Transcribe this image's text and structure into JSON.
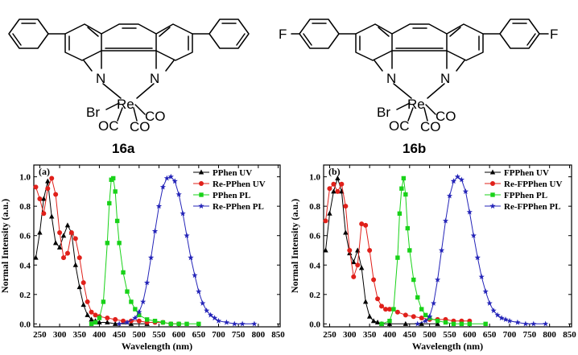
{
  "structures": {
    "left": {
      "label": "16a",
      "para_substituent": "",
      "atoms": {
        "n1": "N",
        "n2": "N",
        "metal": "Re",
        "halide": "Br",
        "oc": "OC",
        "co1": "CO",
        "co2": "CO"
      }
    },
    "right": {
      "label": "16b",
      "para_substituent": "F",
      "atoms": {
        "n1": "N",
        "n2": "N",
        "metal": "Re",
        "halide": "Br",
        "oc": "OC",
        "co1": "CO",
        "co2": "CO"
      }
    }
  },
  "chart_data": [
    {
      "type": "line",
      "panel_tag": "(a)",
      "xlabel": "Wavelength (nm)",
      "ylabel": "Normal Intensity (a.u.)",
      "xlim": [
        235,
        855
      ],
      "ylim": [
        -0.02,
        1.08
      ],
      "xticks": [
        250,
        300,
        350,
        400,
        450,
        500,
        550,
        600,
        650,
        700,
        750,
        800,
        850
      ],
      "yticks": [
        0.0,
        0.2,
        0.4,
        0.6,
        0.8,
        1.0
      ],
      "legend_position": "top-right",
      "series": [
        {
          "name": "PPhen UV",
          "color": "#000000",
          "marker": "triangle",
          "x": [
            240,
            250,
            260,
            270,
            280,
            290,
            300,
            310,
            320,
            330,
            340,
            350,
            360,
            370,
            380,
            390,
            400,
            420,
            440,
            480,
            520
          ],
          "y": [
            0.45,
            0.62,
            0.85,
            0.97,
            0.73,
            0.55,
            0.52,
            0.6,
            0.67,
            0.62,
            0.4,
            0.25,
            0.13,
            0.06,
            0.03,
            0.02,
            0.01,
            0.01,
            0.0,
            0.0,
            0.0
          ]
        },
        {
          "name": "Re-PPhen UV",
          "color": "#e0201a",
          "marker": "circle",
          "x": [
            240,
            250,
            260,
            270,
            280,
            290,
            300,
            310,
            320,
            330,
            340,
            350,
            360,
            370,
            380,
            390,
            400,
            420,
            440,
            460,
            480,
            500,
            520,
            540,
            560,
            580,
            600
          ],
          "y": [
            0.93,
            0.85,
            0.75,
            0.92,
            0.99,
            0.88,
            0.62,
            0.45,
            0.48,
            0.62,
            0.58,
            0.45,
            0.28,
            0.15,
            0.08,
            0.06,
            0.05,
            0.04,
            0.03,
            0.02,
            0.02,
            0.02,
            0.01,
            0.01,
            0.01,
            0.0,
            0.0
          ]
        },
        {
          "name": "PPhen PL",
          "color": "#19d219",
          "marker": "square",
          "x": [
            380,
            390,
            400,
            410,
            420,
            425,
            430,
            435,
            440,
            445,
            450,
            460,
            470,
            480,
            490,
            500,
            520,
            540,
            560,
            580,
            600,
            620,
            650
          ],
          "y": [
            0.0,
            0.01,
            0.04,
            0.15,
            0.55,
            0.82,
            0.98,
            0.99,
            0.9,
            0.7,
            0.55,
            0.35,
            0.22,
            0.15,
            0.1,
            0.06,
            0.03,
            0.02,
            0.01,
            0.0,
            0.0,
            0.0,
            0.0
          ]
        },
        {
          "name": "Re-PPhen PL",
          "color": "#2424b8",
          "marker": "star",
          "x": [
            450,
            470,
            490,
            500,
            510,
            520,
            530,
            540,
            550,
            560,
            570,
            580,
            590,
            600,
            610,
            620,
            630,
            640,
            650,
            660,
            670,
            680,
            690,
            700,
            720,
            740,
            760,
            790
          ],
          "y": [
            0.0,
            0.01,
            0.04,
            0.08,
            0.15,
            0.28,
            0.45,
            0.63,
            0.8,
            0.93,
            0.99,
            1.0,
            0.97,
            0.88,
            0.75,
            0.6,
            0.45,
            0.33,
            0.22,
            0.14,
            0.09,
            0.06,
            0.04,
            0.02,
            0.01,
            0.0,
            0.0,
            0.0
          ]
        }
      ]
    },
    {
      "type": "line",
      "panel_tag": "(b)",
      "xlabel": "Wavelength (nm)",
      "ylabel": "Normal Intensity (a.u.)",
      "xlim": [
        235,
        855
      ],
      "ylim": [
        -0.02,
        1.08
      ],
      "xticks": [
        250,
        300,
        350,
        400,
        450,
        500,
        550,
        600,
        650,
        700,
        750,
        800,
        850
      ],
      "yticks": [
        0.0,
        0.2,
        0.4,
        0.6,
        0.8,
        1.0
      ],
      "legend_position": "top-right",
      "series": [
        {
          "name": "FPPhen UV",
          "color": "#000000",
          "marker": "triangle",
          "x": [
            240,
            250,
            260,
            270,
            280,
            290,
            300,
            310,
            320,
            330,
            340,
            350,
            360,
            370,
            380,
            400,
            440,
            480,
            520
          ],
          "y": [
            0.5,
            0.75,
            0.9,
            0.99,
            0.9,
            0.62,
            0.48,
            0.42,
            0.5,
            0.38,
            0.15,
            0.05,
            0.02,
            0.01,
            0.0,
            0.0,
            0.0,
            0.0,
            0.0
          ]
        },
        {
          "name": "Re-FPPhen UV",
          "color": "#e0201a",
          "marker": "circle",
          "x": [
            240,
            250,
            260,
            270,
            280,
            290,
            300,
            310,
            320,
            330,
            340,
            350,
            360,
            370,
            380,
            390,
            400,
            420,
            440,
            460,
            480,
            500,
            520,
            540,
            560,
            580,
            600
          ],
          "y": [
            0.7,
            0.92,
            0.95,
            0.9,
            0.95,
            0.8,
            0.5,
            0.32,
            0.4,
            0.68,
            0.67,
            0.5,
            0.3,
            0.17,
            0.12,
            0.1,
            0.1,
            0.08,
            0.06,
            0.05,
            0.04,
            0.03,
            0.03,
            0.03,
            0.02,
            0.02,
            0.02
          ]
        },
        {
          "name": "FPPhen PL",
          "color": "#19d219",
          "marker": "square",
          "x": [
            380,
            400,
            410,
            420,
            425,
            430,
            435,
            440,
            445,
            450,
            460,
            470,
            480,
            490,
            500,
            520,
            540,
            560,
            580,
            600,
            640
          ],
          "y": [
            0.0,
            0.02,
            0.1,
            0.45,
            0.75,
            0.92,
            0.99,
            0.88,
            0.65,
            0.5,
            0.3,
            0.18,
            0.1,
            0.06,
            0.04,
            0.02,
            0.01,
            0.0,
            0.0,
            0.0,
            0.0
          ]
        },
        {
          "name": "Re-FPPhen PL",
          "color": "#2424b8",
          "marker": "star",
          "x": [
            470,
            490,
            500,
            510,
            520,
            530,
            540,
            550,
            560,
            570,
            580,
            590,
            600,
            610,
            620,
            630,
            640,
            650,
            660,
            670,
            680,
            690,
            700,
            720,
            740,
            760,
            790
          ],
          "y": [
            0.0,
            0.02,
            0.05,
            0.14,
            0.3,
            0.5,
            0.7,
            0.87,
            0.97,
            1.0,
            0.98,
            0.9,
            0.76,
            0.6,
            0.45,
            0.32,
            0.22,
            0.14,
            0.09,
            0.06,
            0.04,
            0.03,
            0.02,
            0.01,
            0.0,
            0.0,
            0.0
          ]
        }
      ]
    }
  ]
}
